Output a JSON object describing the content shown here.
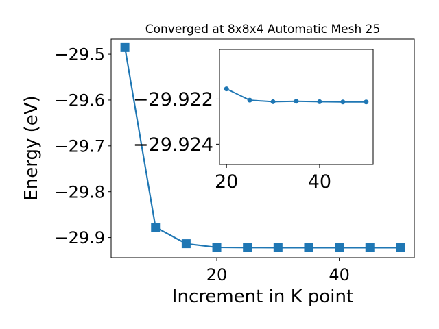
{
  "chart_data": [
    {
      "type": "line",
      "title": "Converged at 8x8x4 Automatic Mesh 25",
      "xlabel": "Increment in K point",
      "ylabel": "Energy (eV)",
      "x": [
        5,
        10,
        15,
        20,
        25,
        30,
        35,
        40,
        45,
        50
      ],
      "series": [
        {
          "values": [
            -29.4855,
            -29.8775,
            -29.9135,
            -29.9215,
            -29.922,
            -29.9221,
            -29.9221,
            -29.9221,
            -29.9221,
            -29.9221
          ],
          "color": "#1f77b4",
          "marker": "square"
        }
      ],
      "xlim": [
        2.75,
        52.25
      ],
      "ylim": [
        -29.944,
        -29.467
      ],
      "xticks": [
        20,
        40
      ],
      "xtick_labels": [
        "20",
        "40"
      ],
      "yticks": [
        -29.5,
        -29.6,
        -29.7,
        -29.8,
        -29.9
      ],
      "ytick_labels": [
        "−29.5",
        "−29.6",
        "−29.7",
        "−29.8",
        "−29.9"
      ],
      "grid": false,
      "legend": "none"
    },
    {
      "type": "line",
      "title": "",
      "xlabel": "",
      "ylabel": "",
      "x": [
        20,
        25,
        30,
        35,
        40,
        45,
        50
      ],
      "series": [
        {
          "values": [
            -29.92155,
            -29.92205,
            -29.92212,
            -29.9221,
            -29.92212,
            -29.92213,
            -29.92213
          ],
          "color": "#1f77b4",
          "marker": "circle"
        }
      ],
      "xlim": [
        18.5,
        51.5
      ],
      "ylim": [
        -29.9249,
        -29.9198
      ],
      "xticks": [
        20,
        40
      ],
      "xtick_labels": [
        "20",
        "40"
      ],
      "yticks": [
        -29.924,
        -29.922
      ],
      "ytick_labels": [
        "−29.924",
        "−29.922"
      ],
      "grid": false,
      "legend": "none"
    }
  ]
}
